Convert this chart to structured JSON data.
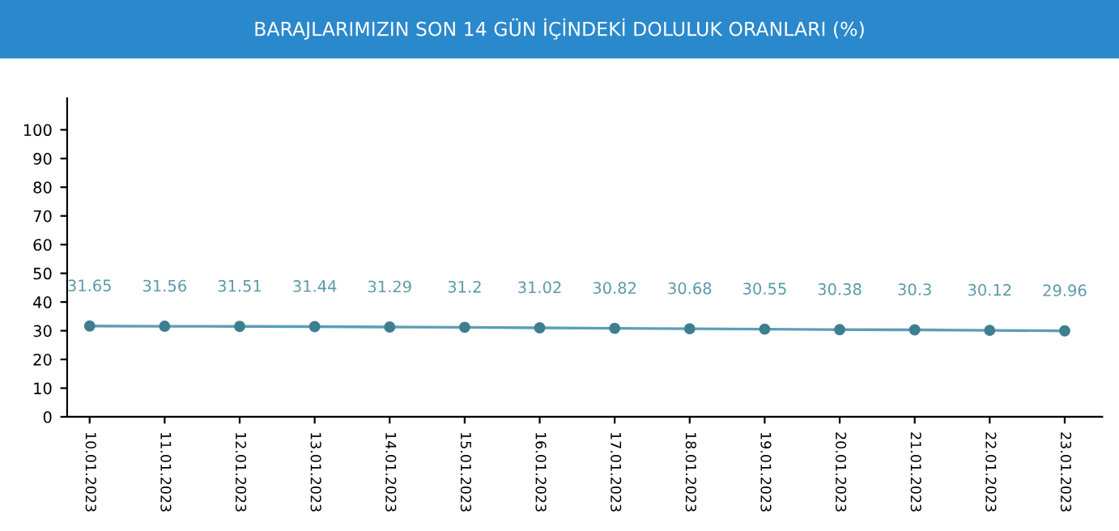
{
  "chart_data": {
    "type": "line",
    "title": "BARAJLARIMIZIN SON 14 GÜN İÇİNDEKİ DOLULUK ORANLARI (%)",
    "categories": [
      "10.01.2023",
      "11.01.2023",
      "12.01.2023",
      "13.01.2023",
      "14.01.2023",
      "15.01.2023",
      "16.01.2023",
      "17.01.2023",
      "18.01.2023",
      "19.01.2023",
      "20.01.2023",
      "21.01.2023",
      "22.01.2023",
      "23.01.2023"
    ],
    "series": [
      {
        "color": "#5b9fb5",
        "values": [
          31.65,
          31.56,
          31.51,
          31.44,
          31.29,
          31.2,
          31.02,
          30.82,
          30.68,
          30.55,
          30.38,
          30.3,
          30.12,
          29.96
        ]
      }
    ],
    "data_labels": true,
    "marker": "circle",
    "line_style": "solid",
    "grid": false,
    "legend": false,
    "ylim": [
      0,
      111
    ],
    "yticks": [
      0,
      10,
      20,
      30,
      40,
      50,
      60,
      70,
      80,
      90,
      100
    ]
  }
}
